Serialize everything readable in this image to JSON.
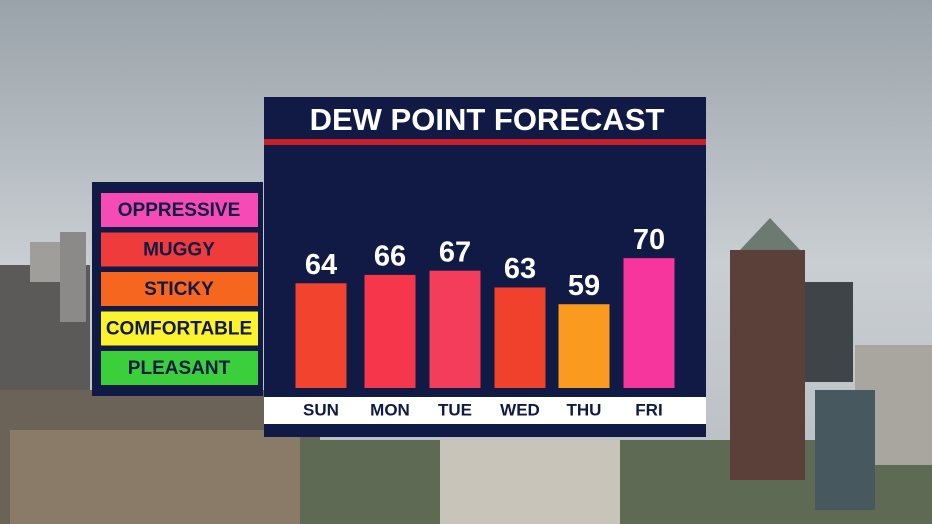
{
  "chart_data": {
    "type": "bar",
    "title": "DEW POINT FORECAST",
    "categories": [
      "SUN",
      "MON",
      "TUE",
      "WED",
      "THU",
      "FRI"
    ],
    "values": [
      64,
      66,
      67,
      63,
      59,
      70
    ],
    "colors": [
      "#f2432e",
      "#f6364b",
      "#f43d5b",
      "#f0412c",
      "#fa9a1e",
      "#f6369d"
    ],
    "ylim": [
      39,
      76
    ],
    "legend": [
      {
        "label": "OPPRESSIVE",
        "color": "#f64bb6"
      },
      {
        "label": "MUGGY",
        "color": "#f03b3c"
      },
      {
        "label": "STICKY",
        "color": "#f7661f"
      },
      {
        "label": "COMFORTABLE",
        "color": "#fdf22e"
      },
      {
        "label": "PLEASANT",
        "color": "#3bd03b"
      }
    ]
  }
}
